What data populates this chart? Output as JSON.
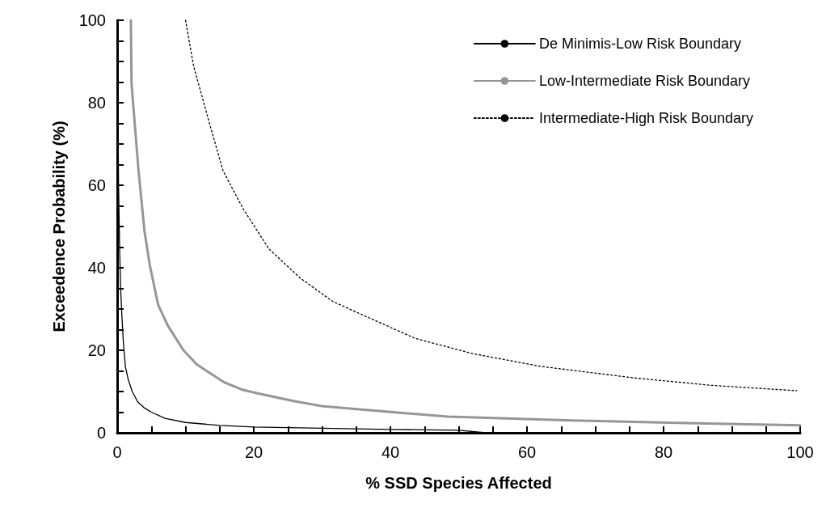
{
  "chart_data": {
    "type": "line",
    "xlabel": "% SSD Species Affected",
    "ylabel": "Exceedence Probability (%)",
    "xlim": [
      0,
      100
    ],
    "ylim": [
      0,
      100
    ],
    "xticks": [
      0,
      {
        "value": 5,
        "label": null
      },
      {
        "value": 10,
        "label": null
      },
      {
        "value": 15,
        "label": null
      },
      20,
      {
        "value": 25,
        "label": null
      },
      {
        "value": 30,
        "label": null
      },
      {
        "value": 35,
        "label": null
      },
      40,
      {
        "value": 45,
        "label": null
      },
      {
        "value": 50,
        "label": null
      },
      {
        "value": 55,
        "label": null
      },
      60,
      {
        "value": 65,
        "label": null
      },
      {
        "value": 70,
        "label": null
      },
      {
        "value": 75,
        "label": null
      },
      80,
      {
        "value": 85,
        "label": null
      },
      {
        "value": 90,
        "label": null
      },
      {
        "value": 95,
        "label": null
      },
      100
    ],
    "yticks": [
      0,
      {
        "value": 5,
        "label": null
      },
      {
        "value": 10,
        "label": null
      },
      {
        "value": 15,
        "label": null
      },
      20,
      {
        "value": 25,
        "label": null
      },
      {
        "value": 30,
        "label": null
      },
      {
        "value": 35,
        "label": null
      },
      40,
      {
        "value": 45,
        "label": null
      },
      {
        "value": 50,
        "label": null
      },
      {
        "value": 55,
        "label": null
      },
      60,
      {
        "value": 65,
        "label": null
      },
      {
        "value": 70,
        "label": null
      },
      {
        "value": 75,
        "label": null
      },
      80,
      {
        "value": 85,
        "label": null
      },
      {
        "value": 90,
        "label": null
      },
      {
        "value": 95,
        "label": null
      },
      100
    ],
    "grid": false,
    "legend": "top right",
    "marker": "none",
    "series": [
      {
        "name": "De Minimis-Low Risk Boundary",
        "color": "#000000",
        "line_style": "solid",
        "x": [
          0.05,
          0.1,
          0.2,
          0.35,
          0.5,
          0.7,
          0.9,
          1.2,
          1.6,
          2.2,
          3,
          4,
          5,
          7,
          10,
          15,
          20,
          30,
          40,
          50,
          54,
          100
        ],
        "values": [
          95,
          80,
          60,
          45,
          35,
          28,
          22,
          16,
          13,
          10,
          7.5,
          6,
          5,
          3.5,
          2.5,
          1.8,
          1.4,
          1.1,
          0.8,
          0.6,
          0,
          0
        ]
      },
      {
        "name": "Low-Intermediate Risk Boundary",
        "color": "#969696",
        "line_style": "solid",
        "x": [
          2,
          2.1,
          3.1,
          4,
          4.8,
          6,
          7.4,
          9.7,
          11.7,
          15.6,
          18.2,
          20.7,
          25.8,
          30.2,
          48.4,
          66.6,
          84.7,
          100
        ],
        "values": [
          100,
          84.6,
          64,
          48.8,
          40.4,
          31,
          26,
          20,
          16.5,
          12.3,
          10.5,
          9.5,
          7.7,
          6.4,
          3.9,
          3,
          2.3,
          1.8
        ]
      },
      {
        "name": "Intermediate-High Risk Boundary",
        "color": "#000000",
        "line_style": "dotted",
        "x": [
          10,
          11.2,
          13.8,
          15.5,
          18.4,
          22.2,
          26.8,
          31.5,
          34.8,
          43.6,
          52,
          62,
          75.7,
          87,
          99.5
        ],
        "values": [
          100,
          88.8,
          73.3,
          63.5,
          54.4,
          44.6,
          37.5,
          31.9,
          29.4,
          22.9,
          19.2,
          16.1,
          13.3,
          11.5,
          10.2
        ]
      }
    ]
  }
}
